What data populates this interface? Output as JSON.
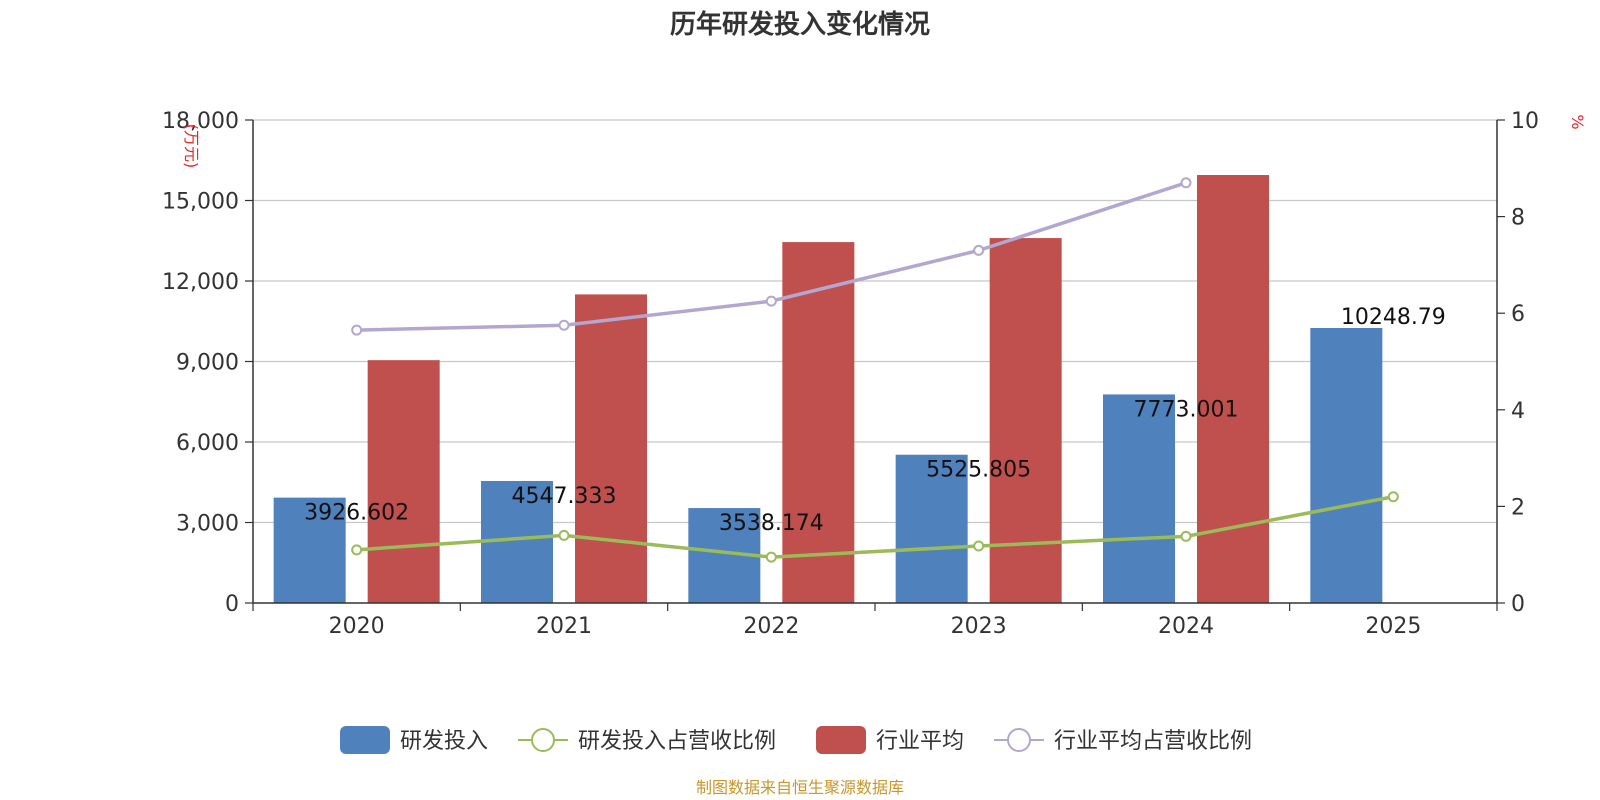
{
  "chart_data": {
    "type": "bar",
    "title": "历年研发投入变化情况",
    "categories": [
      "2020",
      "2021",
      "2022",
      "2023",
      "2024",
      "2025"
    ],
    "ylabel_left": "万元",
    "ylabel_right": "%",
    "ylim_left": [
      0,
      18000
    ],
    "ylim_right": [
      0,
      10
    ],
    "yticks_left": [
      "0",
      "3,000",
      "6,000",
      "9,000",
      "12,000",
      "15,000",
      "18,000"
    ],
    "yticks_right": [
      "0",
      "2",
      "4",
      "6",
      "8",
      "10"
    ],
    "grid": true,
    "series": [
      {
        "name": "研发投入",
        "type": "bar",
        "axis": "left",
        "color": "#4f81bd",
        "values": [
          3926.602,
          4547.333,
          3538.174,
          5525.805,
          7773.001,
          10248.79
        ],
        "labels": [
          "3926.602",
          "4547.333",
          "3538.174",
          "5525.805",
          "7773.001",
          "10248.79"
        ]
      },
      {
        "name": "研发投入占营收比例",
        "type": "line",
        "axis": "right",
        "color": "#9bbb59",
        "values": [
          1.1,
          1.4,
          0.95,
          1.18,
          1.38,
          2.2
        ]
      },
      {
        "name": "行业平均",
        "type": "bar",
        "axis": "left",
        "color": "#c0504d",
        "values": [
          9050,
          11500,
          13450,
          13600,
          15950,
          null
        ]
      },
      {
        "name": "行业平均占营收比例",
        "type": "line",
        "axis": "right",
        "color": "#b3a7cf",
        "values": [
          5.65,
          5.75,
          6.25,
          7.3,
          8.7,
          null
        ]
      }
    ],
    "legend_position": "bottom",
    "source": "制图数据来自恒生聚源数据库"
  }
}
